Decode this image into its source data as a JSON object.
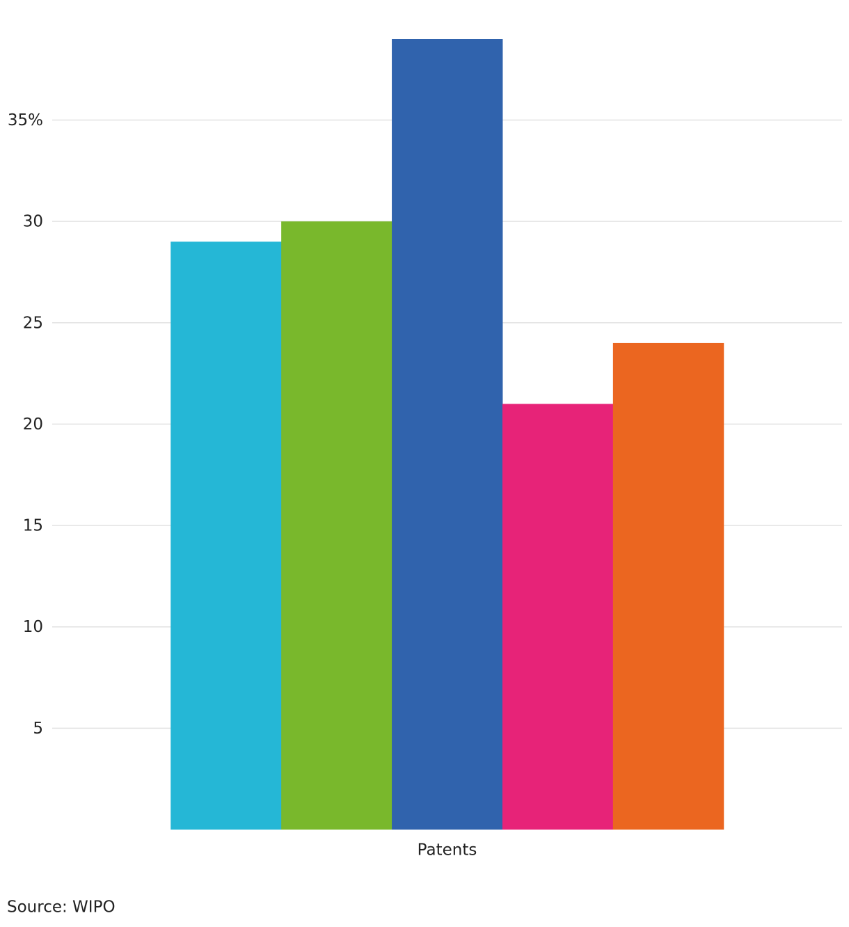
{
  "chart_data": {
    "type": "bar",
    "categories": [
      "Patents"
    ],
    "series": [
      {
        "color": "#25b7d6",
        "values": [
          29
        ]
      },
      {
        "color": "#79b82c",
        "values": [
          30
        ]
      },
      {
        "color": "#3063ad",
        "values": [
          39
        ]
      },
      {
        "color": "#e72378",
        "values": [
          21
        ]
      },
      {
        "color": "#eb6620",
        "values": [
          24
        ]
      }
    ],
    "ylim": [
      0,
      39
    ],
    "yticks": [
      5,
      10,
      15,
      20,
      25,
      30,
      {
        "value": 35,
        "label": "35%"
      }
    ],
    "grid": true,
    "source": "Source: WIPO"
  }
}
